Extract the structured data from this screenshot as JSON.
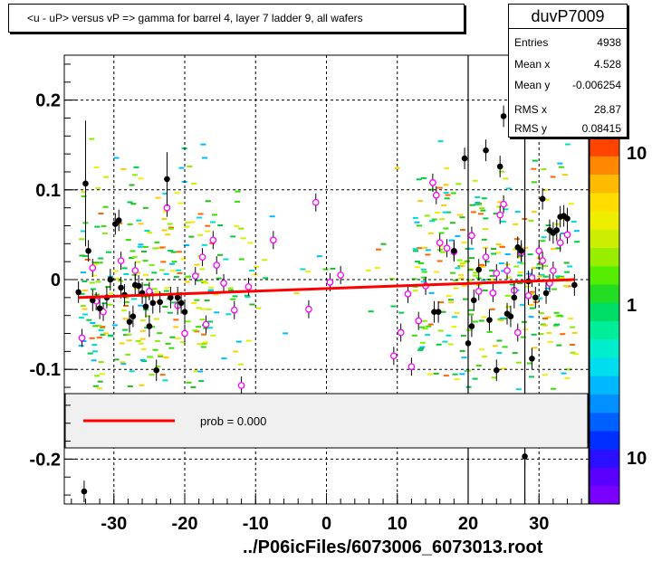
{
  "title": "<u - uP>       versus   vP =>  gamma for barrel 4, layer 7 ladder 9, all wafers",
  "stats": {
    "name": "duvP7009",
    "rows": [
      {
        "label": "Entries",
        "value": "4938"
      },
      {
        "label": "Mean x",
        "value": "4.528"
      },
      {
        "label": "Mean y",
        "value": "-0.006254"
      },
      {
        "label": "RMS x",
        "value": "28.87"
      },
      {
        "label": "RMS y",
        "value": "0.08415"
      }
    ]
  },
  "legend": {
    "label": "prob = 0.000",
    "line_color": "#ff0000"
  },
  "footer": "../P06icFiles/6073006_6073013.root",
  "palette": {
    "colorbar": [
      "#7a00ff",
      "#5a00ff",
      "#2a10ff",
      "#0030ff",
      "#0060ff",
      "#0090ff",
      "#00b8ff",
      "#00ddee",
      "#00eecc",
      "#00ee99",
      "#00dd66",
      "#22dd22",
      "#55ee00",
      "#99ee00",
      "#ccee00",
      "#eeee00",
      "#ffdd00",
      "#ffbb00",
      "#ff8800",
      "#ff4400"
    ],
    "scatter": [
      "#00cc44",
      "#33dd00",
      "#88ee00",
      "#ccee00",
      "#eeee00",
      "#ffcc00",
      "#00bbff",
      "#00ddcc",
      "#ff6600",
      "#22bb22"
    ]
  },
  "chart_data": {
    "type": "scatter",
    "xlim": [
      -37,
      37
    ],
    "ylim": [
      -0.25,
      0.25
    ],
    "xticks": [
      -30,
      -20,
      -10,
      0,
      10,
      20,
      30
    ],
    "xtick_labels": [
      "-30",
      "-20",
      "-10",
      "0",
      "10",
      "20",
      "30"
    ],
    "yticks": [
      -0.2,
      -0.1,
      0,
      0.1,
      0.2
    ],
    "ytick_labels": [
      "-0.2",
      "-0.1",
      "0",
      "0.1",
      "0.2"
    ],
    "colorbar_labels": [
      "10",
      "1",
      "10"
    ],
    "grid": true,
    "vertical_lines": [
      20,
      28
    ],
    "fit_line": {
      "x": [
        -35,
        35
      ],
      "y": [
        -0.02,
        0.0
      ]
    },
    "profile_black": [
      {
        "x": -35,
        "y": -0.014
      },
      {
        "x": -34,
        "y": 0.107,
        "err": 0.07
      },
      {
        "x": -33.6,
        "y": 0.032
      },
      {
        "x": -33,
        "y": -0.023
      },
      {
        "x": -32,
        "y": -0.032
      },
      {
        "x": -31,
        "y": -0.02
      },
      {
        "x": -30.5,
        "y": 0.0
      },
      {
        "x": -29.8,
        "y": 0.062
      },
      {
        "x": -29.3,
        "y": 0.066
      },
      {
        "x": -29,
        "y": -0.009
      },
      {
        "x": -28.5,
        "y": -0.017
      },
      {
        "x": -27.8,
        "y": -0.047
      },
      {
        "x": -27.3,
        "y": -0.041
      },
      {
        "x": -27,
        "y": -0.006
      },
      {
        "x": -26.5,
        "y": -0.007
      },
      {
        "x": -26,
        "y": -0.015
      },
      {
        "x": -25.5,
        "y": -0.03
      },
      {
        "x": -25,
        "y": -0.052
      },
      {
        "x": -24.5,
        "y": -0.026
      },
      {
        "x": -24,
        "y": -0.101
      },
      {
        "x": -23.5,
        "y": -0.025
      },
      {
        "x": -22.5,
        "y": 0.112,
        "err": 0.03
      },
      {
        "x": -22,
        "y": -0.02
      },
      {
        "x": -21,
        "y": -0.02
      },
      {
        "x": -20.5,
        "y": -0.026
      },
      {
        "x": -20,
        "y": -0.036
      },
      {
        "x": -34.2,
        "y": -0.236
      },
      {
        "x": 15.2,
        "y": -0.036
      },
      {
        "x": 15.8,
        "y": -0.036
      },
      {
        "x": 18,
        "y": 0.032
      },
      {
        "x": 19.5,
        "y": 0.135
      },
      {
        "x": 20,
        "y": -0.071
      },
      {
        "x": 20.5,
        "y": -0.052
      },
      {
        "x": 20.8,
        "y": -0.023
      },
      {
        "x": 21.5,
        "y": 0.011
      },
      {
        "x": 22.5,
        "y": 0.144
      },
      {
        "x": 23,
        "y": -0.045
      },
      {
        "x": 24,
        "y": -0.101
      },
      {
        "x": 24.5,
        "y": 0.126
      },
      {
        "x": 25,
        "y": 0.182
      },
      {
        "x": 25.5,
        "y": -0.038
      },
      {
        "x": 26,
        "y": -0.041
      },
      {
        "x": 26.5,
        "y": -0.02
      },
      {
        "x": 27,
        "y": 0.036
      },
      {
        "x": 27.5,
        "y": 0.032
      },
      {
        "x": 28,
        "y": -0.197
      },
      {
        "x": 28.5,
        "y": -0.002
      },
      {
        "x": 29,
        "y": -0.088
      },
      {
        "x": 29.5,
        "y": -0.02
      },
      {
        "x": 30.5,
        "y": 0.09
      },
      {
        "x": 31,
        "y": -0.015
      },
      {
        "x": 31.5,
        "y": 0.055
      },
      {
        "x": 32,
        "y": 0.052
      },
      {
        "x": 32.5,
        "y": 0.055
      },
      {
        "x": 33,
        "y": 0.07
      },
      {
        "x": 33.5,
        "y": 0.071
      },
      {
        "x": 34,
        "y": 0.068
      },
      {
        "x": 35,
        "y": -0.006
      }
    ],
    "profile_magenta": [
      {
        "x": -34.5,
        "y": -0.065
      },
      {
        "x": -33,
        "y": 0.013
      },
      {
        "x": -32.5,
        "y": -0.024
      },
      {
        "x": -31.5,
        "y": -0.036
      },
      {
        "x": -29,
        "y": 0.021
      },
      {
        "x": -27,
        "y": 0.01
      },
      {
        "x": -25,
        "y": -0.013
      },
      {
        "x": -22.5,
        "y": 0.08
      },
      {
        "x": -21,
        "y": -0.029
      },
      {
        "x": -20,
        "y": -0.06
      },
      {
        "x": -18.5,
        "y": 0.004
      },
      {
        "x": -17.5,
        "y": 0.025
      },
      {
        "x": -17,
        "y": -0.05
      },
      {
        "x": -16,
        "y": 0.044
      },
      {
        "x": -15.5,
        "y": 0.016
      },
      {
        "x": -14.5,
        "y": -0.004
      },
      {
        "x": -13,
        "y": -0.034
      },
      {
        "x": -12,
        "y": -0.118
      },
      {
        "x": -11,
        "y": -0.008
      },
      {
        "x": -7.5,
        "y": 0.044
      },
      {
        "x": -2.5,
        "y": -0.033
      },
      {
        "x": -1.5,
        "y": 0.086
      },
      {
        "x": 0.5,
        "y": -0.003
      },
      {
        "x": 2,
        "y": 0.005
      },
      {
        "x": 9.5,
        "y": -0.085
      },
      {
        "x": 10.5,
        "y": -0.059
      },
      {
        "x": 11.5,
        "y": -0.016
      },
      {
        "x": 12,
        "y": -0.097
      },
      {
        "x": 13,
        "y": -0.046
      },
      {
        "x": 14,
        "y": -0.007
      },
      {
        "x": 15,
        "y": 0.108
      },
      {
        "x": 15.5,
        "y": 0.094
      },
      {
        "x": 16,
        "y": 0.041
      },
      {
        "x": 17,
        "y": 0.035
      },
      {
        "x": 18,
        "y": 0.031
      },
      {
        "x": 20.5,
        "y": 0.049
      },
      {
        "x": 21.5,
        "y": -0.013
      },
      {
        "x": 22.5,
        "y": 0.025
      },
      {
        "x": 23.5,
        "y": -0.015
      },
      {
        "x": 24,
        "y": 0.007
      },
      {
        "x": 24.5,
        "y": 0.072
      },
      {
        "x": 25,
        "y": 0.084
      },
      {
        "x": 25.5,
        "y": 0.01
      },
      {
        "x": 26.5,
        "y": -0.012
      },
      {
        "x": 27,
        "y": -0.059
      },
      {
        "x": 27.5,
        "y": 0.03
      },
      {
        "x": 28.5,
        "y": -0.018
      },
      {
        "x": 29,
        "y": 0.002
      },
      {
        "x": 30,
        "y": 0.032
      },
      {
        "x": 30.5,
        "y": 0.021
      },
      {
        "x": 31.5,
        "y": -0.004
      },
      {
        "x": 32,
        "y": 0.01
      },
      {
        "x": 33,
        "y": 0.041
      },
      {
        "x": 34,
        "y": 0.05
      }
    ]
  }
}
